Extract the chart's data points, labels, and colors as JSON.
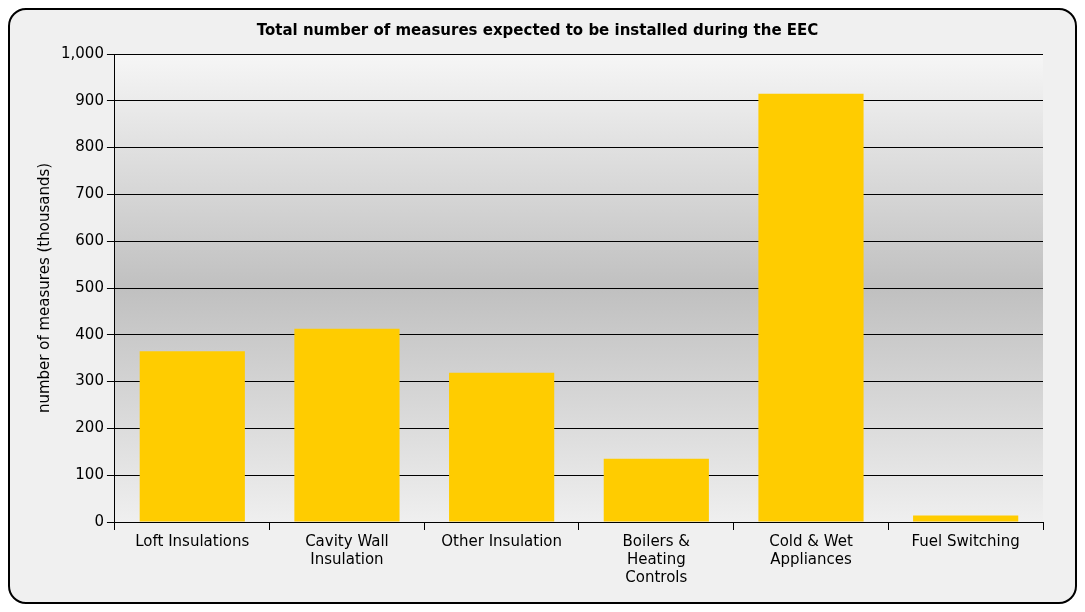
{
  "chart_data": {
    "type": "bar",
    "title": "Total number of measures expected to be installed during the EEC",
    "ylabel": "number of measures (thousands)",
    "categories": [
      "Loft Insulations",
      "Cavity Wall Insulation",
      "Other Insulation",
      "Boilers & Heating Controls",
      "Cold & Wet Appliances",
      "Fuel Switching"
    ],
    "values": [
      365,
      413,
      319,
      135,
      915,
      14
    ],
    "color": "#ffcc00",
    "ylim": [
      0,
      1000
    ],
    "yticks": [
      0,
      100,
      200,
      300,
      400,
      500,
      600,
      700,
      800,
      900,
      {
        "value": 1000,
        "label": "1,000"
      }
    ],
    "grid": "y",
    "legend": false
  }
}
